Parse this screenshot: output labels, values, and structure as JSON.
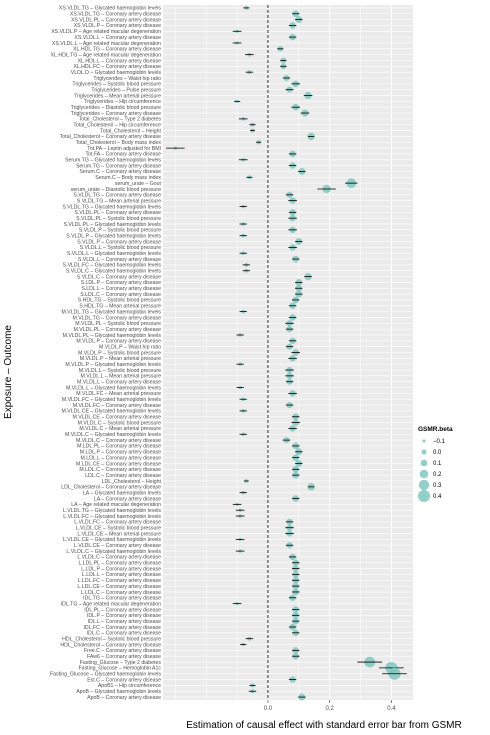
{
  "chart_data": {
    "type": "scatter",
    "subtype": "forest-plot",
    "title": "",
    "xlabel": "Estimation of causal effect with standard error bar from GSMR",
    "ylabel": "Exposure – Outcome",
    "xlim": [
      -0.34,
      0.47
    ],
    "xticks": [
      0.0,
      0.2,
      0.4
    ],
    "xtick_labels": [
      "0.0",
      "0.2",
      "0.4"
    ],
    "reference_line": 0,
    "grid": true,
    "legend": {
      "title": "GSMR.beta",
      "position": "right",
      "entries": [
        {
          "label": "−0.1",
          "value": -0.1
        },
        {
          "label": "0.0",
          "value": 0.0
        },
        {
          "label": "0.1",
          "value": 0.1
        },
        {
          "label": "0.2",
          "value": 0.2
        },
        {
          "label": "0.3",
          "value": 0.3
        },
        {
          "label": "0.4",
          "value": 0.4
        }
      ]
    },
    "colors": {
      "point": "#7fc7c0",
      "errorbar": "#000000",
      "panel": "#ebebeb",
      "grid": "#ffffff"
    },
    "rows": [
      {
        "label": "XS.VLDL.TG – Glycated haemoglobin levels",
        "beta": -0.07,
        "se": 0.01
      },
      {
        "label": "XS.VLDL.TG – Coronary artery disease",
        "beta": 0.09,
        "se": 0.012
      },
      {
        "label": "XS.VLDL.PL – Coronary artery disease",
        "beta": 0.1,
        "se": 0.012
      },
      {
        "label": "XS.VLDL.P – Coronary artery disease",
        "beta": 0.08,
        "se": 0.012
      },
      {
        "label": "XS.VLDL.P – Age related macular degeneration",
        "beta": -0.1,
        "se": 0.014
      },
      {
        "label": "XS.VLDL.L – Coronary artery disease",
        "beta": 0.08,
        "se": 0.012
      },
      {
        "label": "XS.VLDL.L – Age related macular degeneration",
        "beta": -0.1,
        "se": 0.014
      },
      {
        "label": "XL.HDL.TG – Coronary artery disease",
        "beta": 0.04,
        "se": 0.01
      },
      {
        "label": "XL.HDL.TG – Age related macular degeneration",
        "beta": -0.06,
        "se": 0.014
      },
      {
        "label": "XL.HDL.L – Coronary artery disease",
        "beta": 0.05,
        "se": 0.01
      },
      {
        "label": "XL.HDL.FC – Coronary artery disease",
        "beta": 0.05,
        "se": 0.01
      },
      {
        "label": "VLDL.D – Glycated haemoglobin levels",
        "beta": -0.06,
        "se": 0.012
      },
      {
        "label": "Triglycerides – Waist hip ratio",
        "beta": 0.06,
        "se": 0.012
      },
      {
        "label": "Triglycerides – Systolic blood pressure",
        "beta": 0.09,
        "se": 0.014
      },
      {
        "label": "Triglycerides – Pulse pressure",
        "beta": 0.07,
        "se": 0.013
      },
      {
        "label": "Triglycerides – Mean arterial pressure",
        "beta": 0.13,
        "se": 0.014
      },
      {
        "label": "Triglycerides – Hip circumference",
        "beta": -0.1,
        "se": 0.01
      },
      {
        "label": "Triglycerides – Diastolic blood pressure",
        "beta": 0.09,
        "se": 0.014
      },
      {
        "label": "Triglycerides – Coronary artery disease",
        "beta": 0.12,
        "se": 0.014
      },
      {
        "label": "Total_Cholesterol – Type 2 diabetes",
        "beta": -0.08,
        "se": 0.014
      },
      {
        "label": "Total_Cholesterol – Hip circumference",
        "beta": -0.05,
        "se": 0.01
      },
      {
        "label": "Total_Cholesterol – Height",
        "beta": -0.05,
        "se": 0.008
      },
      {
        "label": "Total_Cholesterol – Coronary artery disease",
        "beta": 0.14,
        "se": 0.01
      },
      {
        "label": "Total_Cholesterol – Body mass index",
        "beta": -0.03,
        "se": 0.008
      },
      {
        "label": "Tot.PA – Leptin adjusted for BMI",
        "beta": -0.3,
        "se": 0.03
      },
      {
        "label": "Tot.FA – Coronary artery disease",
        "beta": 0.08,
        "se": 0.012
      },
      {
        "label": "Serum.TG – Glycated haemoglobin levels",
        "beta": -0.08,
        "se": 0.014
      },
      {
        "label": "Serum.TG – Coronary artery disease",
        "beta": 0.08,
        "se": 0.012
      },
      {
        "label": "Serum.C – Coronary artery disease",
        "beta": 0.11,
        "se": 0.012
      },
      {
        "label": "Serum.C – Body mass index",
        "beta": -0.06,
        "se": 0.01
      },
      {
        "label": "serum_urate – Gout",
        "beta": 0.27,
        "se": 0.02
      },
      {
        "label": "serum_urate – Diastolic blood pressure",
        "beta": 0.19,
        "se": 0.03
      },
      {
        "label": "S.VLDL.TG – Coronary artery disease",
        "beta": 0.07,
        "se": 0.012
      },
      {
        "label": "S.VLDL.TG – Mean arterial pressure",
        "beta": 0.08,
        "se": 0.014
      },
      {
        "label": "S.VLDL.TG – Glycated haemoglobin levels",
        "beta": -0.08,
        "se": 0.012
      },
      {
        "label": "S.VLDL.PL – Coronary artery disease",
        "beta": 0.08,
        "se": 0.012
      },
      {
        "label": "S.VLDL.PL – Systolic blood pressure",
        "beta": 0.08,
        "se": 0.014
      },
      {
        "label": "S.VLDL.PL – Glycated haemoglobin levels",
        "beta": -0.08,
        "se": 0.012
      },
      {
        "label": "S.VLDL.P – Systolic blood pressure",
        "beta": 0.08,
        "se": 0.014
      },
      {
        "label": "S.VLDL.P – Glycated haemoglobin levels",
        "beta": -0.08,
        "se": 0.012
      },
      {
        "label": "S.VLDL.P – Coronary artery disease",
        "beta": 0.1,
        "se": 0.012
      },
      {
        "label": "S.VLDL.L – Systolic blood pressure",
        "beta": 0.08,
        "se": 0.014
      },
      {
        "label": "S.VLDL.L – Glycated haemoglobin levels",
        "beta": -0.08,
        "se": 0.012
      },
      {
        "label": "S.VLDL.L – Coronary artery disease",
        "beta": 0.09,
        "se": 0.012
      },
      {
        "label": "S.VLDL.FC – Glycated haemoglobin levels",
        "beta": -0.07,
        "se": 0.012
      },
      {
        "label": "S.VLDL.C – Glycated haemoglobin levels",
        "beta": -0.07,
        "se": 0.012
      },
      {
        "label": "S.VLDL.C – Coronary artery disease",
        "beta": 0.13,
        "se": 0.012
      },
      {
        "label": "S.LDL.P – Coronary artery disease",
        "beta": 0.1,
        "se": 0.012
      },
      {
        "label": "S.LDL.L – Coronary artery disease",
        "beta": 0.1,
        "se": 0.012
      },
      {
        "label": "S.LDL.C – Coronary artery disease",
        "beta": 0.1,
        "se": 0.012
      },
      {
        "label": "S.HDL.TG – Systolic blood pressure",
        "beta": 0.09,
        "se": 0.012
      },
      {
        "label": "S.HDL.TG – Mean arterial pressure",
        "beta": 0.08,
        "se": 0.012
      },
      {
        "label": "M.VLDL.TG – Glycated haemoglobin levels",
        "beta": -0.08,
        "se": 0.012
      },
      {
        "label": "M.VLDL.TG – Coronary artery disease",
        "beta": 0.08,
        "se": 0.012
      },
      {
        "label": "M.VLDL.PL – Systolic blood pressure",
        "beta": 0.07,
        "se": 0.014
      },
      {
        "label": "M.VLDL.PL – Coronary artery disease",
        "beta": 0.07,
        "se": 0.012
      },
      {
        "label": "M.VLDL.PL – Glycated haemoglobin levels",
        "beta": -0.09,
        "se": 0.012
      },
      {
        "label": "M.VLDL.P – Coronary artery disease",
        "beta": 0.08,
        "se": 0.012
      },
      {
        "label": "M.VLDL.P – Waist hip ratio",
        "beta": 0.07,
        "se": 0.012
      },
      {
        "label": "M.VLDL.P – Systolic blood pressure",
        "beta": 0.09,
        "se": 0.014
      },
      {
        "label": "M.VLDL.P – Mean arterial pressure",
        "beta": 0.08,
        "se": 0.014
      },
      {
        "label": "M.VLDL.P – Glycated haemoglobin levels",
        "beta": -0.09,
        "se": 0.012
      },
      {
        "label": "M.VLDL.L – Systolic blood pressure",
        "beta": 0.07,
        "se": 0.014
      },
      {
        "label": "M.VLDL.L – Mean arterial pressure",
        "beta": 0.07,
        "se": 0.014
      },
      {
        "label": "M.VLDL.L – Coronary artery disease",
        "beta": 0.07,
        "se": 0.012
      },
      {
        "label": "M.VLDL.L – Glycated haemoglobin levels",
        "beta": -0.09,
        "se": 0.012
      },
      {
        "label": "M.VLDL.FC – Mean arterial pressure",
        "beta": 0.08,
        "se": 0.014
      },
      {
        "label": "M.VLDL.FC – Glycated haemoglobin levels",
        "beta": -0.08,
        "se": 0.012
      },
      {
        "label": "M.VLDL.FC – Coronary artery disease",
        "beta": 0.07,
        "se": 0.012
      },
      {
        "label": "M.VLDL.CE – Glycated haemoglobin levels",
        "beta": -0.08,
        "se": 0.012
      },
      {
        "label": "M.VLDL.CE – Coronary artery disease",
        "beta": 0.09,
        "se": 0.012
      },
      {
        "label": "M.VLDL.C – Systolic blood pressure",
        "beta": 0.09,
        "se": 0.014
      },
      {
        "label": "M.VLDL.C – Mean arterial pressure",
        "beta": 0.08,
        "se": 0.014
      },
      {
        "label": "M.VLDL.C – Glycated haemoglobin levels",
        "beta": -0.08,
        "se": 0.012
      },
      {
        "label": "M.VLDL.C – Coronary artery disease",
        "beta": 0.06,
        "se": 0.012
      },
      {
        "label": "M.LDL.PL – Coronary artery disease",
        "beta": 0.09,
        "se": 0.012
      },
      {
        "label": "M.LDL.P – Coronary artery disease",
        "beta": 0.1,
        "se": 0.012
      },
      {
        "label": "M.LDL.L – Coronary artery disease",
        "beta": 0.09,
        "se": 0.012
      },
      {
        "label": "M.LDL.CE – Coronary artery disease",
        "beta": 0.1,
        "se": 0.012
      },
      {
        "label": "M.LDL.C – Coronary artery disease",
        "beta": 0.09,
        "se": 0.012
      },
      {
        "label": "LDL.C – Coronary artery disease",
        "beta": 0.09,
        "se": 0.012
      },
      {
        "label": "LDL_Cholesterol – Height",
        "beta": -0.07,
        "se": 0.008
      },
      {
        "label": "LDL_Cholesterol – Coronary artery disease",
        "beta": 0.14,
        "se": 0.01
      },
      {
        "label": "LA – Glycated haemoglobin levels",
        "beta": -0.08,
        "se": 0.012
      },
      {
        "label": "LA – Coronary artery disease",
        "beta": 0.09,
        "se": 0.012
      },
      {
        "label": "LA – Age related macular degeneration",
        "beta": -0.1,
        "se": 0.014
      },
      {
        "label": "L.VLDL.TG – Glycated haemoglobin levels",
        "beta": -0.09,
        "se": 0.014
      },
      {
        "label": "L.VLDL.FC – Glycated haemoglobin levels",
        "beta": -0.09,
        "se": 0.014
      },
      {
        "label": "L.VLDL.FC – Coronary artery disease",
        "beta": 0.07,
        "se": 0.012
      },
      {
        "label": "L.VLDL.CE – Systolic blood pressure",
        "beta": 0.07,
        "se": 0.014
      },
      {
        "label": "L.VLDL.CE – Mean arterial pressure",
        "beta": 0.07,
        "se": 0.014
      },
      {
        "label": "L.VLDL.CE – Glycated haemoglobin levels",
        "beta": -0.09,
        "se": 0.014
      },
      {
        "label": "L.VLDL.CE – Coronary artery disease",
        "beta": 0.07,
        "se": 0.012
      },
      {
        "label": "L.VLDL.C – Glycated haemoglobin levels",
        "beta": -0.09,
        "se": 0.014
      },
      {
        "label": "L.VLDL.C – Coronary artery disease",
        "beta": 0.08,
        "se": 0.012
      },
      {
        "label": "L.LDL.PL – Coronary artery disease",
        "beta": 0.09,
        "se": 0.012
      },
      {
        "label": "L.LDL.P – Coronary artery disease",
        "beta": 0.09,
        "se": 0.012
      },
      {
        "label": "L.LDL.L – Coronary artery disease",
        "beta": 0.09,
        "se": 0.012
      },
      {
        "label": "L.LDL.FC – Coronary artery disease",
        "beta": 0.09,
        "se": 0.012
      },
      {
        "label": "L.LDL.CE – Coronary artery disease",
        "beta": 0.09,
        "se": 0.012
      },
      {
        "label": "L.LDL.C – Coronary artery disease",
        "beta": 0.09,
        "se": 0.012
      },
      {
        "label": "IDL.TG – Coronary artery disease",
        "beta": 0.08,
        "se": 0.012
      },
      {
        "label": "IDL.TG – Age related macular degeneration",
        "beta": -0.1,
        "se": 0.014
      },
      {
        "label": "IDL.PL – Coronary artery disease",
        "beta": 0.09,
        "se": 0.012
      },
      {
        "label": "IDL.P – Coronary artery disease",
        "beta": 0.09,
        "se": 0.012
      },
      {
        "label": "IDL.L – Coronary artery disease",
        "beta": 0.09,
        "se": 0.012
      },
      {
        "label": "IDL.FC – Coronary artery disease",
        "beta": 0.08,
        "se": 0.012
      },
      {
        "label": "IDL.C – Coronary artery disease",
        "beta": 0.09,
        "se": 0.012
      },
      {
        "label": "HDL_Cholesterol – Systolic blood pressure",
        "beta": -0.06,
        "se": 0.012
      },
      {
        "label": "HDL_Cholesterol – Coronary artery disease",
        "beta": -0.08,
        "se": 0.01
      },
      {
        "label": "Free.C – Coronary artery disease",
        "beta": 0.09,
        "se": 0.012
      },
      {
        "label": "FAw6 – Coronary artery disease",
        "beta": 0.09,
        "se": 0.012
      },
      {
        "label": "Fasting_Glucose – Type 2 diabetes",
        "beta": 0.33,
        "se": 0.04
      },
      {
        "label": "Fasting_Glucose – Hemoglobin A1c",
        "beta": 0.4,
        "se": 0.04
      },
      {
        "label": "Fasting_Glucose – Glycated haemoglobin levels",
        "beta": 0.41,
        "se": 0.04
      },
      {
        "label": "Est.C – Coronary artery disease",
        "beta": 0.08,
        "se": 0.012
      },
      {
        "label": "ApoB1 – Hip circumference",
        "beta": -0.05,
        "se": 0.01
      },
      {
        "label": "ApoB – Glycated haemoglobin levels",
        "beta": -0.05,
        "se": 0.012
      },
      {
        "label": "ApoB – Coronary artery disease",
        "beta": 0.11,
        "se": 0.012
      }
    ]
  }
}
